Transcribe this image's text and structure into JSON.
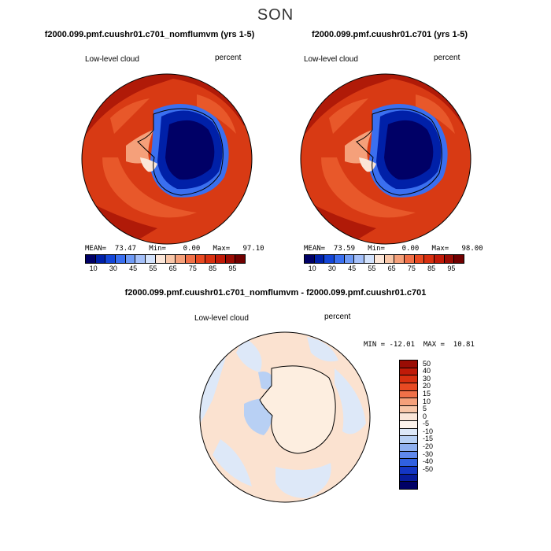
{
  "season": "SON",
  "panels": [
    {
      "title": "f2000.099.pmf.cuushr01.c701_nomflumvm (yrs 1-5)",
      "variable": "Low-level cloud",
      "units": "percent",
      "stats": "MEAN=  73.47   Min=    0.00   Max=   97.10"
    },
    {
      "title": "f2000.099.pmf.cuushr01.c701 (yrs 1-5)",
      "variable": "Low-level cloud",
      "units": "percent",
      "stats": "MEAN=  73.59   Min=    0.00   Max=   98.00"
    }
  ],
  "colorbar_top": {
    "colors": [
      "#000066",
      "#0020a8",
      "#1446d8",
      "#3a6ff0",
      "#6e9af6",
      "#a4c0fa",
      "#d2e2fc",
      "#fbe6d8",
      "#f8c6a8",
      "#f5a07a",
      "#f07048",
      "#e84a22",
      "#d83010",
      "#c01a08",
      "#9a0c04",
      "#700000"
    ],
    "tick_labels": [
      "10",
      "30",
      "45",
      "55",
      "65",
      "75",
      "85",
      "95"
    ]
  },
  "diff_panel": {
    "title": "f2000.099.pmf.cuushr01.c701_nomflumvm - f2000.099.pmf.cuushr01.c701",
    "variable": "Low-level cloud",
    "units": "percent",
    "stats": "MIN = -12.01  MAX =  10.81"
  },
  "colorbar_diff": {
    "colors": [
      "#9a0c04",
      "#c01a08",
      "#d83010",
      "#e84a22",
      "#f07048",
      "#f5a07a",
      "#f8c6a8",
      "#fbe6d8",
      "#fdf3ec",
      "#dde8f8",
      "#b8d0f4",
      "#8fb0f0",
      "#5f88ec",
      "#3060e0",
      "#1436c4",
      "#081c9c",
      "#000066"
    ],
    "tick_labels": [
      "50",
      "40",
      "30",
      "20",
      "15",
      "10",
      "5",
      "0",
      "-5",
      "-10",
      "-15",
      "-20",
      "-30",
      "-40",
      "-50"
    ]
  }
}
